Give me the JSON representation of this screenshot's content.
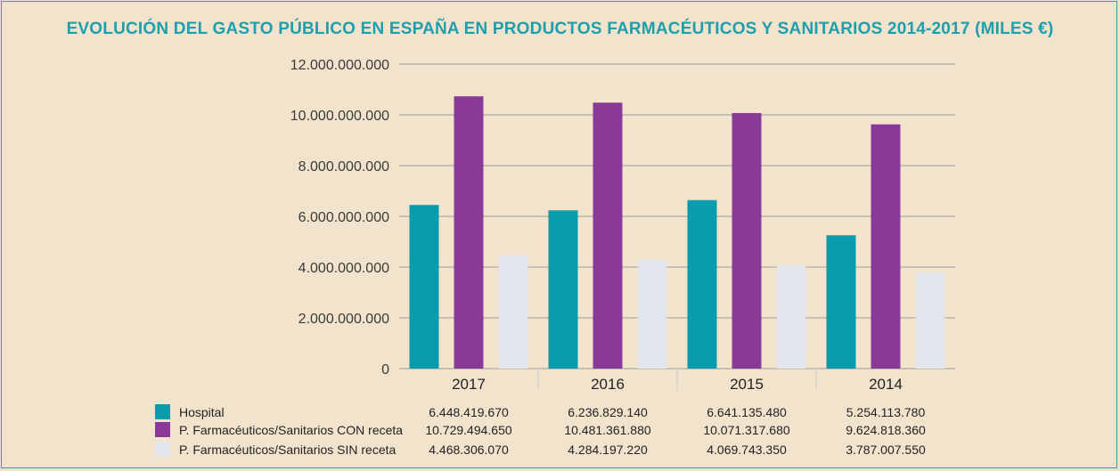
{
  "chart_data": {
    "type": "bar",
    "title": "EVOLUCIÓN DEL GASTO PÚBLICO EN ESPAÑA EN PRODUCTOS FARMACÉUTICOS Y SANITARIOS 2014-2017 (MILES €)",
    "categories": [
      "2017",
      "2016",
      "2015",
      "2014"
    ],
    "ylim": [
      0,
      12000000000
    ],
    "yticks": [
      0,
      2000000000,
      4000000000,
      6000000000,
      8000000000,
      10000000000,
      12000000000
    ],
    "ytick_labels": [
      "0",
      "2.000.000.000",
      "4.000.000.000",
      "6.000.000.000",
      "8.000.000.000",
      "10.000.000.000",
      "12.000.000.000"
    ],
    "grid": true,
    "legend": "bottom-table",
    "series": [
      {
        "name": "Hospital",
        "color": "#0a9cad",
        "values": [
          6448419670,
          6236829140,
          6641135480,
          5254113780
        ],
        "labels": [
          "6.448.419.670",
          "6.236.829.140",
          "6.641.135.480",
          "5.254.113.780"
        ]
      },
      {
        "name": "P. Farmacéuticos/Sanitarios CON receta",
        "color": "#893a96",
        "values": [
          10729494650,
          10481361880,
          10071317680,
          9624818360
        ],
        "labels": [
          "10.729.494.650",
          "10.481.361.880",
          "10.071.317.680",
          "9.624.818.360"
        ]
      },
      {
        "name": "P. Farmacéuticos/Sanitarios SIN receta",
        "color": "#e2e5ec",
        "values": [
          4468306070,
          4284197220,
          4069743350,
          3787007550
        ],
        "labels": [
          "4.468.306.070",
          "4.284.197.220",
          "4.069.743.350",
          "3.787.007.550"
        ]
      }
    ]
  }
}
